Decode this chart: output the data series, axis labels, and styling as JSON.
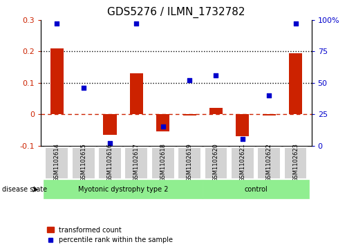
{
  "title": "GDS5276 / ILMN_1732782",
  "samples": [
    "GSM1102614",
    "GSM1102615",
    "GSM1102616",
    "GSM1102617",
    "GSM1102618",
    "GSM1102619",
    "GSM1102620",
    "GSM1102621",
    "GSM1102622",
    "GSM1102623"
  ],
  "transformed_count": [
    0.21,
    0.0,
    -0.065,
    0.13,
    -0.055,
    -0.005,
    0.02,
    -0.07,
    -0.005,
    0.195
  ],
  "percentile_rank": [
    97,
    46,
    2,
    97,
    15,
    52,
    56,
    5,
    40,
    97
  ],
  "ylim_left": [
    -0.1,
    0.3
  ],
  "ylim_right": [
    0,
    100
  ],
  "yticks_left": [
    -0.1,
    0.0,
    0.1,
    0.2,
    0.3
  ],
  "yticks_right": [
    0,
    25,
    50,
    75,
    100
  ],
  "ytick_labels_left": [
    "-0.1",
    "0",
    "0.1",
    "0.2",
    "0.3"
  ],
  "ytick_labels_right": [
    "0",
    "25",
    "50",
    "75",
    "100%"
  ],
  "hlines": [
    0.1,
    0.2
  ],
  "bar_color": "#cc2200",
  "dot_color": "#0000cc",
  "hline_color": "#000000",
  "zero_line_color": "#cc2200",
  "group1_label": "Myotonic dystrophy type 2",
  "group2_label": "control",
  "group_color": "#90ee90",
  "sample_box_color": "#d3d3d3",
  "legend_bar_label": "transformed count",
  "legend_dot_label": "percentile rank within the sample",
  "disease_state_label": "disease state",
  "bar_width": 0.5,
  "background_color": "#ffffff"
}
